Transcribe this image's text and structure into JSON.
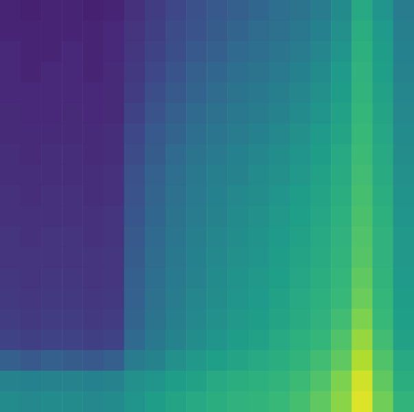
{
  "chart_data": {
    "type": "heatmap",
    "color": "viridis",
    "tick_labels": false,
    "zlim": [
      0,
      1
    ],
    "cells": [
      [
        0.1,
        0.09,
        0.1,
        0.1,
        0.09,
        0.1,
        0.14,
        0.18,
        0.22,
        0.25,
        0.28,
        0.3,
        0.33,
        0.36,
        0.38,
        0.42,
        0.48,
        0.6,
        0.52,
        0.42
      ],
      [
        0.1,
        0.1,
        0.1,
        0.1,
        0.1,
        0.11,
        0.15,
        0.19,
        0.23,
        0.26,
        0.29,
        0.32,
        0.35,
        0.37,
        0.4,
        0.44,
        0.5,
        0.62,
        0.54,
        0.43
      ],
      [
        0.11,
        0.1,
        0.1,
        0.11,
        0.1,
        0.11,
        0.16,
        0.2,
        0.24,
        0.28,
        0.3,
        0.34,
        0.36,
        0.39,
        0.42,
        0.46,
        0.52,
        0.63,
        0.55,
        0.44
      ],
      [
        0.11,
        0.1,
        0.11,
        0.11,
        0.1,
        0.12,
        0.17,
        0.22,
        0.26,
        0.3,
        0.33,
        0.36,
        0.38,
        0.41,
        0.44,
        0.48,
        0.54,
        0.64,
        0.56,
        0.45
      ],
      [
        0.11,
        0.11,
        0.11,
        0.11,
        0.11,
        0.12,
        0.18,
        0.24,
        0.28,
        0.32,
        0.35,
        0.38,
        0.4,
        0.43,
        0.46,
        0.5,
        0.55,
        0.65,
        0.57,
        0.46
      ],
      [
        0.12,
        0.11,
        0.11,
        0.12,
        0.11,
        0.12,
        0.2,
        0.26,
        0.3,
        0.34,
        0.37,
        0.4,
        0.42,
        0.45,
        0.48,
        0.52,
        0.57,
        0.66,
        0.58,
        0.47
      ],
      [
        0.12,
        0.12,
        0.12,
        0.12,
        0.12,
        0.13,
        0.22,
        0.28,
        0.32,
        0.36,
        0.39,
        0.42,
        0.44,
        0.47,
        0.5,
        0.54,
        0.58,
        0.67,
        0.59,
        0.48
      ],
      [
        0.13,
        0.12,
        0.13,
        0.13,
        0.12,
        0.13,
        0.23,
        0.29,
        0.34,
        0.38,
        0.41,
        0.44,
        0.46,
        0.49,
        0.52,
        0.55,
        0.6,
        0.68,
        0.6,
        0.49
      ],
      [
        0.13,
        0.13,
        0.13,
        0.13,
        0.13,
        0.14,
        0.25,
        0.31,
        0.36,
        0.4,
        0.43,
        0.45,
        0.48,
        0.5,
        0.53,
        0.57,
        0.61,
        0.69,
        0.61,
        0.5
      ],
      [
        0.14,
        0.13,
        0.14,
        0.14,
        0.13,
        0.14,
        0.26,
        0.32,
        0.37,
        0.41,
        0.44,
        0.47,
        0.49,
        0.52,
        0.55,
        0.58,
        0.62,
        0.7,
        0.62,
        0.51
      ],
      [
        0.14,
        0.14,
        0.14,
        0.14,
        0.14,
        0.15,
        0.27,
        0.33,
        0.38,
        0.42,
        0.45,
        0.48,
        0.5,
        0.53,
        0.56,
        0.59,
        0.63,
        0.71,
        0.63,
        0.52
      ],
      [
        0.15,
        0.14,
        0.15,
        0.15,
        0.14,
        0.15,
        0.28,
        0.34,
        0.39,
        0.43,
        0.46,
        0.49,
        0.51,
        0.54,
        0.57,
        0.6,
        0.64,
        0.72,
        0.64,
        0.53
      ],
      [
        0.15,
        0.15,
        0.15,
        0.15,
        0.15,
        0.16,
        0.29,
        0.35,
        0.4,
        0.44,
        0.47,
        0.5,
        0.52,
        0.55,
        0.58,
        0.61,
        0.65,
        0.73,
        0.64,
        0.53
      ],
      [
        0.16,
        0.15,
        0.16,
        0.16,
        0.15,
        0.16,
        0.3,
        0.36,
        0.41,
        0.45,
        0.48,
        0.51,
        0.53,
        0.56,
        0.59,
        0.62,
        0.66,
        0.75,
        0.65,
        0.54
      ],
      [
        0.17,
        0.16,
        0.17,
        0.17,
        0.16,
        0.17,
        0.31,
        0.37,
        0.42,
        0.46,
        0.49,
        0.52,
        0.54,
        0.57,
        0.6,
        0.63,
        0.67,
        0.77,
        0.66,
        0.55
      ],
      [
        0.18,
        0.17,
        0.18,
        0.18,
        0.17,
        0.18,
        0.32,
        0.38,
        0.43,
        0.47,
        0.5,
        0.53,
        0.55,
        0.58,
        0.61,
        0.64,
        0.69,
        0.8,
        0.67,
        0.56
      ],
      [
        0.2,
        0.19,
        0.2,
        0.2,
        0.19,
        0.2,
        0.34,
        0.4,
        0.45,
        0.49,
        0.52,
        0.55,
        0.57,
        0.6,
        0.63,
        0.66,
        0.72,
        0.84,
        0.69,
        0.57
      ],
      [
        0.3,
        0.28,
        0.3,
        0.29,
        0.28,
        0.3,
        0.42,
        0.45,
        0.5,
        0.53,
        0.56,
        0.58,
        0.6,
        0.62,
        0.65,
        0.69,
        0.75,
        0.88,
        0.72,
        0.6
      ],
      [
        0.45,
        0.44,
        0.45,
        0.45,
        0.44,
        0.45,
        0.5,
        0.52,
        0.55,
        0.57,
        0.6,
        0.62,
        0.63,
        0.65,
        0.68,
        0.72,
        0.8,
        0.93,
        0.75,
        0.62
      ],
      [
        0.48,
        0.47,
        0.48,
        0.48,
        0.47,
        0.48,
        0.52,
        0.55,
        0.58,
        0.6,
        0.62,
        0.64,
        0.65,
        0.67,
        0.7,
        0.75,
        0.82,
        0.95,
        0.78,
        0.65
      ]
    ]
  }
}
